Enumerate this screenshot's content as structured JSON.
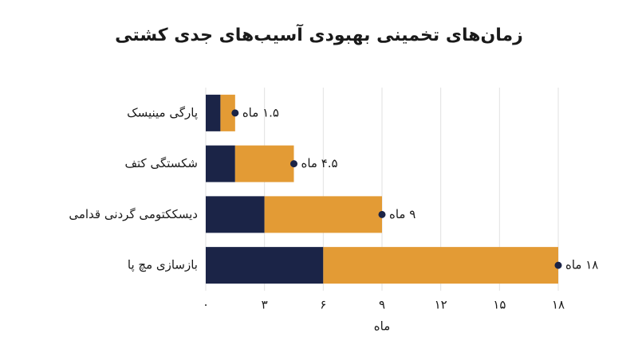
{
  "chart_data": {
    "type": "stacked_barh",
    "title": "زمان‌های تخمینی بهبودی آسیب‌های جدی کشتی",
    "xlabel": "ماه",
    "categories": [
      "پارگی مینیسک",
      "شکستگی کتف",
      "دیسککتومی گردنی قدامی",
      "بازسازی مچ پا"
    ],
    "series": [
      {
        "color": "#1b2447",
        "values": [
          0.75,
          1.5,
          3,
          6
        ]
      },
      {
        "color": "#e39b35",
        "values": [
          0.75,
          3,
          6,
          12
        ]
      }
    ],
    "totals": [
      1.5,
      4.5,
      9,
      18
    ],
    "total_labels": [
      "۱.۵ ماه",
      "۴.۵ ماه",
      "۹ ماه",
      "۱۸ ماه"
    ],
    "xlim": [
      0,
      18
    ],
    "xticks": [
      {
        "value": 0,
        "label": "۰"
      },
      {
        "value": 3,
        "label": "۳"
      },
      {
        "value": 6,
        "label": "۶"
      },
      {
        "value": 9,
        "label": "۹"
      },
      {
        "value": 12,
        "label": "۱۲"
      },
      {
        "value": 15,
        "label": "۱۵"
      },
      {
        "value": 18,
        "label": "۱۸"
      }
    ],
    "grid": true
  }
}
